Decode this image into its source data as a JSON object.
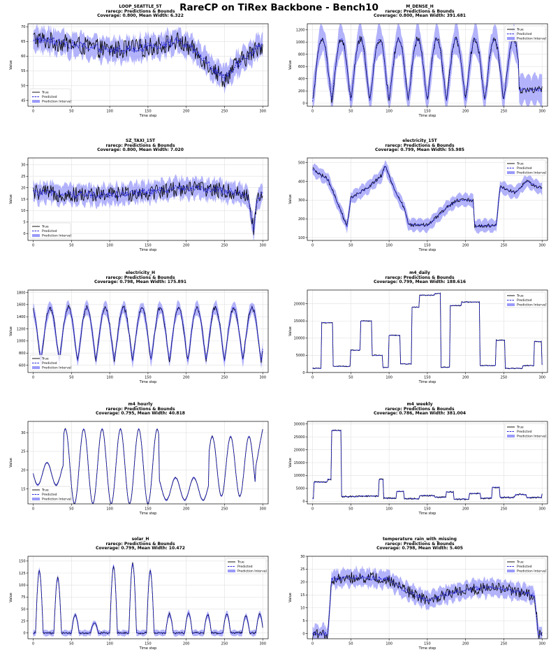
{
  "suptitle": "RareCP on TiRex Backbone - Bench10",
  "subtitle_common": "rarecp: Predictions & Bounds",
  "xlabel": "Time step",
  "ylabel": "Value",
  "legend": [
    "True",
    "Predicted",
    "Prediction Interval"
  ],
  "colors": {
    "true": "#000000",
    "predicted": "#1f1fd6",
    "interval": "#9a9afa"
  },
  "chart_data": [
    {
      "type": "line",
      "title": "LOOP_SEATTLE_5T",
      "stats": "Coverage: 0.800, Mean Width: 6.322",
      "x_range": [
        0,
        300
      ],
      "ylim": [
        43,
        71
      ],
      "yticks": [
        45,
        50,
        55,
        60,
        65,
        70
      ],
      "xticks": [
        0,
        50,
        100,
        150,
        200,
        250,
        300
      ],
      "legend_pos": "lower-left",
      "pattern": "noisy_level",
      "anchors": [
        [
          0,
          66
        ],
        [
          50,
          64
        ],
        [
          100,
          62
        ],
        [
          150,
          63
        ],
        [
          190,
          65
        ],
        [
          210,
          62
        ],
        [
          230,
          57
        ],
        [
          250,
          52
        ],
        [
          265,
          57
        ],
        [
          280,
          60
        ],
        [
          300,
          64
        ]
      ],
      "noise": 3.2,
      "band": 3.2
    },
    {
      "type": "line",
      "title": "M_DENSE_H",
      "stats": "Coverage: 0.800, Mean Width: 391.681",
      "x_range": [
        0,
        300
      ],
      "ylim": [
        -50,
        1300
      ],
      "yticks": [
        0,
        200,
        400,
        600,
        800,
        1000,
        1200
      ],
      "xticks": [
        0,
        50,
        100,
        150,
        200,
        250,
        300
      ],
      "legend_pos": "upper-right",
      "pattern": "periodic",
      "period": 25,
      "low": 50,
      "high": 1050,
      "phase": 0,
      "tail_start": 270,
      "tail_value": 220,
      "noise": 60,
      "band": 195
    },
    {
      "type": "line",
      "title": "SZ_TAXI_15T",
      "stats": "Coverage: 0.800, Mean Width: 7.020",
      "x_range": [
        0,
        300
      ],
      "ylim": [
        -3,
        33
      ],
      "yticks": [
        0,
        5,
        10,
        15,
        20,
        25,
        30
      ],
      "xticks": [
        0,
        50,
        100,
        150,
        200,
        250,
        300
      ],
      "legend_pos": "lower-left",
      "pattern": "noisy_level",
      "anchors": [
        [
          0,
          18
        ],
        [
          50,
          17
        ],
        [
          100,
          17
        ],
        [
          150,
          18
        ],
        [
          200,
          20
        ],
        [
          240,
          19
        ],
        [
          280,
          17
        ],
        [
          288,
          2
        ],
        [
          292,
          14
        ],
        [
          300,
          17
        ]
      ],
      "noise": 3.5,
      "band": 3.5
    },
    {
      "type": "line",
      "title": "electricity_15T",
      "stats": "Coverage: 0.799, Mean Width: 55.985",
      "x_range": [
        0,
        300
      ],
      "ylim": [
        85,
        525
      ],
      "yticks": [
        100,
        200,
        300,
        400,
        500
      ],
      "xticks": [
        0,
        50,
        100,
        150,
        200,
        250,
        300
      ],
      "legend_pos": "upper-right",
      "pattern": "piecewise",
      "anchors": [
        [
          0,
          465
        ],
        [
          20,
          410
        ],
        [
          35,
          260
        ],
        [
          45,
          160
        ],
        [
          50,
          310
        ],
        [
          70,
          360
        ],
        [
          90,
          430
        ],
        [
          95,
          480
        ],
        [
          110,
          330
        ],
        [
          120,
          260
        ],
        [
          125,
          170
        ],
        [
          150,
          165
        ],
        [
          160,
          200
        ],
        [
          175,
          260
        ],
        [
          190,
          300
        ],
        [
          210,
          300
        ],
        [
          212,
          160
        ],
        [
          240,
          165
        ],
        [
          245,
          370
        ],
        [
          265,
          340
        ],
        [
          280,
          400
        ],
        [
          300,
          360
        ]
      ],
      "noise": 10,
      "band": 28
    },
    {
      "type": "line",
      "title": "electricity_H",
      "stats": "Coverage: 0.798, Mean Width: 175.891",
      "x_range": [
        0,
        300
      ],
      "ylim": [
        480,
        1840
      ],
      "yticks": [
        600,
        800,
        1000,
        1200,
        1400,
        1600,
        1800
      ],
      "xticks": [
        0,
        50,
        100,
        150,
        200,
        250,
        300
      ],
      "legend_pos": "lower-left",
      "pattern": "periodic",
      "period": 24,
      "low": 680,
      "high": 1550,
      "phase": -14,
      "tail_start": 9999,
      "tail_value": 0,
      "noise": 40,
      "band": 88
    },
    {
      "type": "line",
      "title": "m4_daily",
      "stats": "Coverage: 0.799, Mean Width: 188.616",
      "x_range": [
        0,
        300
      ],
      "ylim": [
        0,
        24000
      ],
      "yticks": [
        0,
        5000,
        10000,
        15000,
        20000
      ],
      "xticks": [
        0,
        50,
        100,
        150,
        200,
        250,
        300
      ],
      "legend_pos": "upper-right",
      "pattern": "steps",
      "steps": [
        [
          0,
          1200
        ],
        [
          12,
          14500
        ],
        [
          27,
          1800
        ],
        [
          50,
          6500
        ],
        [
          63,
          15000
        ],
        [
          78,
          5000
        ],
        [
          92,
          1500
        ],
        [
          100,
          10800
        ],
        [
          115,
          2500
        ],
        [
          130,
          19000
        ],
        [
          140,
          22500
        ],
        [
          160,
          23000
        ],
        [
          168,
          1500
        ],
        [
          180,
          19500
        ],
        [
          195,
          20500
        ],
        [
          219,
          2000
        ],
        [
          240,
          9400
        ],
        [
          252,
          1200
        ],
        [
          275,
          2000
        ],
        [
          290,
          9000
        ],
        [
          300,
          2200
        ]
      ],
      "noise": 150,
      "band": 94
    },
    {
      "type": "line",
      "title": "m4_hourly",
      "stats": "Coverage: 0.795, Mean Width: 40.818",
      "x_range": [
        0,
        300
      ],
      "ylim": [
        11,
        33
      ],
      "yticks": [
        15,
        20,
        25,
        30
      ],
      "xticks": [
        0,
        50,
        100,
        150,
        200,
        250,
        300
      ],
      "legend_pos": "lower-left",
      "pattern": "hourly",
      "noise": 0.15,
      "band": 0.25
    },
    {
      "type": "line",
      "title": "m4_weekly",
      "stats": "Coverage: 0.786, Mean Width: 381.004",
      "x_range": [
        0,
        300
      ],
      "ylim": [
        -1000,
        31000
      ],
      "yticks": [
        0,
        5000,
        10000,
        15000,
        20000,
        25000,
        30000
      ],
      "xticks": [
        0,
        50,
        100,
        150,
        200,
        250,
        300
      ],
      "legend_pos": "upper-right",
      "pattern": "steps",
      "steps": [
        [
          0,
          1000
        ],
        [
          2,
          7500
        ],
        [
          20,
          8500
        ],
        [
          25,
          27500
        ],
        [
          38,
          1800
        ],
        [
          60,
          2000
        ],
        [
          80,
          2000
        ],
        [
          87,
          8500
        ],
        [
          93,
          1200
        ],
        [
          110,
          3800
        ],
        [
          120,
          1000
        ],
        [
          140,
          2200
        ],
        [
          160,
          1600
        ],
        [
          175,
          3600
        ],
        [
          185,
          800
        ],
        [
          205,
          3000
        ],
        [
          220,
          1200
        ],
        [
          235,
          5400
        ],
        [
          245,
          1500
        ],
        [
          265,
          2600
        ],
        [
          280,
          1500
        ],
        [
          300,
          2800
        ]
      ],
      "noise": 300,
      "band": 190
    },
    {
      "type": "line",
      "title": "solar_H",
      "stats": "Coverage: 0.799, Mean Width: 10.472",
      "x_range": [
        0,
        300
      ],
      "ylim": [
        -12,
        160
      ],
      "yticks": [
        0,
        25,
        50,
        75,
        100,
        125,
        150
      ],
      "xticks": [
        0,
        50,
        100,
        150,
        200,
        250,
        300
      ],
      "legend_pos": "upper-right",
      "pattern": "solar",
      "peaks": [
        [
          8,
          130
        ],
        [
          32,
          115
        ],
        [
          55,
          38
        ],
        [
          80,
          22
        ],
        [
          105,
          140
        ],
        [
          130,
          145
        ],
        [
          153,
          130
        ],
        [
          178,
          40
        ],
        [
          203,
          42
        ],
        [
          228,
          38
        ],
        [
          253,
          40
        ],
        [
          278,
          35
        ],
        [
          296,
          40
        ]
      ],
      "noise": 2,
      "band": 5
    },
    {
      "type": "line",
      "title": "temperature_rain_with_missing",
      "stats": "Coverage: 0.798, Mean Width: 5.405",
      "x_range": [
        0,
        300
      ],
      "ylim": [
        -2,
        30
      ],
      "yticks": [
        0,
        5,
        10,
        15,
        20,
        25,
        30
      ],
      "xticks": [
        0,
        50,
        100,
        150,
        200,
        250,
        300
      ],
      "legend_pos": "upper-right",
      "pattern": "noisy_level",
      "anchors": [
        [
          0,
          0
        ],
        [
          20,
          0
        ],
        [
          25,
          21
        ],
        [
          60,
          22
        ],
        [
          100,
          21
        ],
        [
          120,
          17
        ],
        [
          150,
          13
        ],
        [
          170,
          15
        ],
        [
          200,
          17
        ],
        [
          240,
          18
        ],
        [
          270,
          16
        ],
        [
          290,
          15
        ],
        [
          295,
          0
        ],
        [
          300,
          0
        ]
      ],
      "noise": 2.2,
      "band": 2.7
    }
  ]
}
